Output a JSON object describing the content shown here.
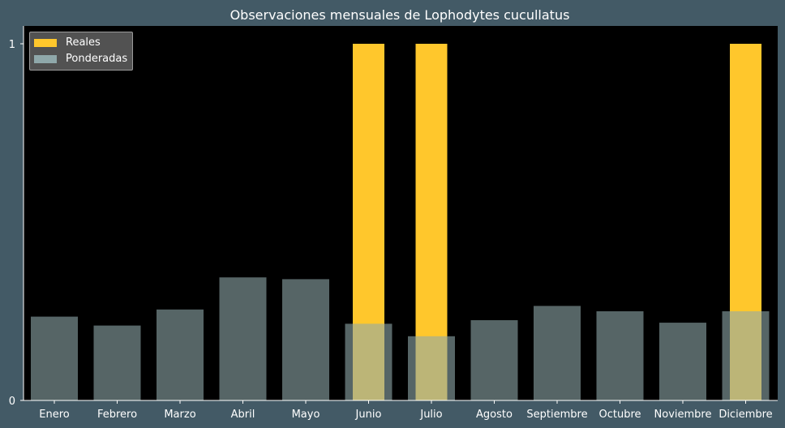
{
  "chart_data": {
    "type": "bar",
    "title": "Observaciones mensuales de Lophodytes cucullatus",
    "xlabel": "",
    "ylabel": "",
    "categories": [
      "Enero",
      "Febrero",
      "Marzo",
      "Abril",
      "Mayo",
      "Junio",
      "Julio",
      "Agosto",
      "Septiembre",
      "Octubre",
      "Noviembre",
      "Diciembre"
    ],
    "yticks": [
      "0",
      "1"
    ],
    "ylim": [
      0,
      1.05
    ],
    "grid": false,
    "legend_position": "top-left",
    "series": [
      {
        "name": "Reales",
        "color": "#ffc72c",
        "values": [
          0,
          0,
          0,
          0,
          0,
          1,
          1,
          0,
          0,
          0,
          0,
          1
        ]
      },
      {
        "name": "Ponderadas",
        "color": "#8fa8aa",
        "values": [
          0.235,
          0.21,
          0.255,
          0.345,
          0.34,
          0.215,
          0.18,
          0.225,
          0.265,
          0.25,
          0.218,
          0.25
        ]
      }
    ]
  },
  "colors": {
    "background": "#435a66",
    "plot_background": "#000000",
    "text": "#ffffff"
  }
}
